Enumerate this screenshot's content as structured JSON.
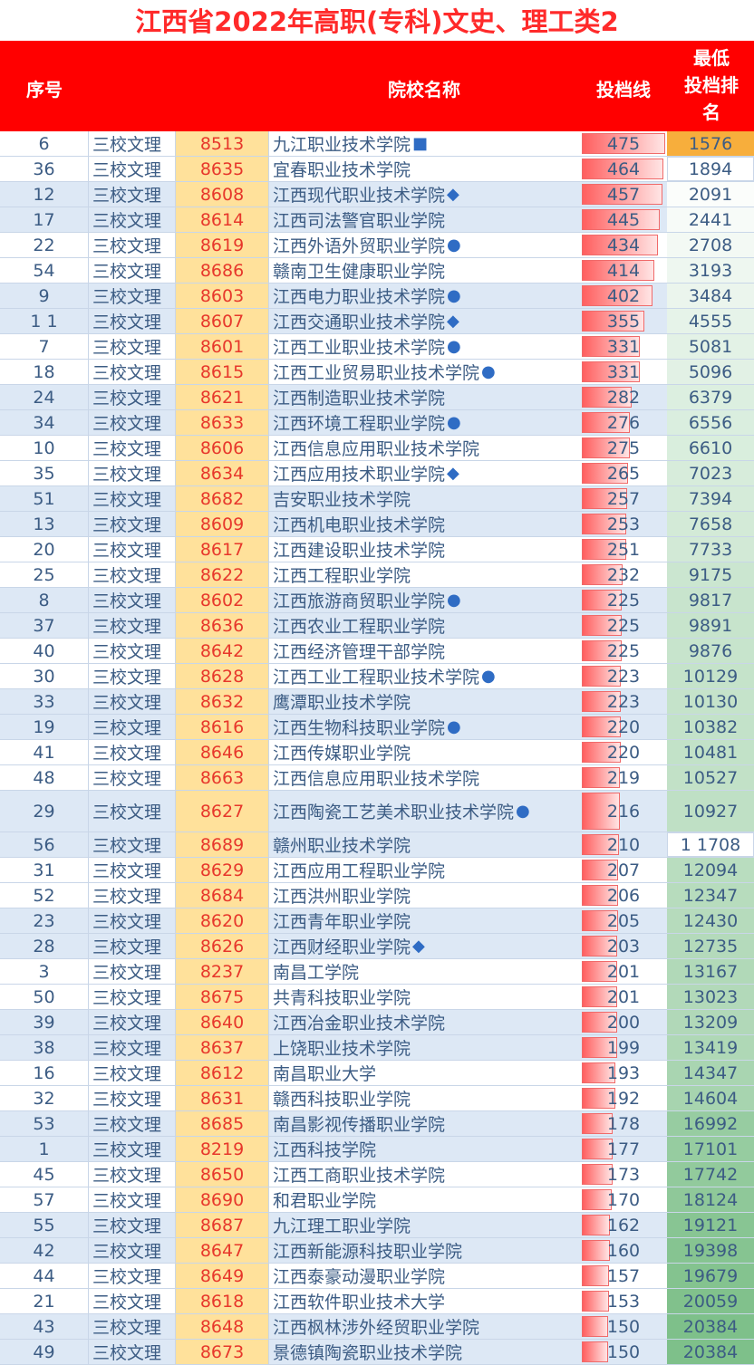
{
  "title": "江西省2022年高职(专科)文史、理工类2",
  "headers": {
    "seq": "序号",
    "name": "院校名称",
    "score": "投档线",
    "rank_lines": [
      "最低",
      "投档排",
      "名"
    ]
  },
  "score_max": 475,
  "rows": [
    {
      "seq": "6",
      "type": "三校文理",
      "code": "8513",
      "name": "九江职业技术学院",
      "mark": "■",
      "score": 475,
      "rank": "1576",
      "rank_color": "#f7ae3c"
    },
    {
      "seq": "36",
      "type": "三校文理",
      "code": "8635",
      "name": "宜春职业技术学院",
      "mark": "",
      "score": 464,
      "rank": "1894",
      "rank_color": "#ffffff"
    },
    {
      "seq": "12",
      "type": "三校文理",
      "code": "8608",
      "name": "江西现代职业技术学院",
      "mark": "◆",
      "score": 457,
      "rank": "2091",
      "rank_color": "#fbfdfb"
    },
    {
      "seq": "17",
      "type": "三校文理",
      "code": "8614",
      "name": "江西司法警官职业学院",
      "mark": "",
      "score": 445,
      "rank": "2441",
      "rank_color": "#f7fbf8"
    },
    {
      "seq": "22",
      "type": "三校文理",
      "code": "8619",
      "name": "江西外语外贸职业学院",
      "mark": "●",
      "score": 434,
      "rank": "2708",
      "rank_color": "#f3f9f4"
    },
    {
      "seq": "54",
      "type": "三校文理",
      "code": "8686",
      "name": "赣南卫生健康职业学院",
      "mark": "",
      "score": 414,
      "rank": "3193",
      "rank_color": "#eef7f0"
    },
    {
      "seq": "9",
      "type": "三校文理",
      "code": "8603",
      "name": "江西电力职业技术学院",
      "mark": "●",
      "score": 402,
      "rank": "3484",
      "rank_color": "#ebf5ed"
    },
    {
      "seq": "1 1",
      "type": "三校文理",
      "code": "8607",
      "name": "江西交通职业技术学院",
      "mark": "◆",
      "score": 355,
      "rank": "4555",
      "rank_color": "#e6f3e9"
    },
    {
      "seq": "7",
      "type": "三校文理",
      "code": "8601",
      "name": "江西工业职业技术学院",
      "mark": "●",
      "score": 331,
      "rank": "5081",
      "rank_color": "#e3f2e6"
    },
    {
      "seq": "18",
      "type": "三校文理",
      "code": "8615",
      "name": "江西工业贸易职业技术学院",
      "mark": "●",
      "score": 331,
      "rank": "5096",
      "rank_color": "#e2f1e5"
    },
    {
      "seq": "24",
      "type": "三校文理",
      "code": "8621",
      "name": "江西制造职业技术学院",
      "mark": "",
      "score": 282,
      "rank": "6379",
      "rank_color": "#dcefe0"
    },
    {
      "seq": "34",
      "type": "三校文理",
      "code": "8633",
      "name": "江西环境工程职业学院",
      "mark": "●",
      "score": 276,
      "rank": "6556",
      "rank_color": "#daeedf"
    },
    {
      "seq": "10",
      "type": "三校文理",
      "code": "8606",
      "name": "江西信息应用职业技术学院",
      "mark": "",
      "score": 275,
      "rank": "6610",
      "rank_color": "#d9eedd"
    },
    {
      "seq": "35",
      "type": "三校文理",
      "code": "8634",
      "name": "江西应用技术职业学院",
      "mark": "◆",
      "score": 265,
      "rank": "7023",
      "rank_color": "#d7ecdb"
    },
    {
      "seq": "51",
      "type": "三校文理",
      "code": "8682",
      "name": "吉安职业技术学院",
      "mark": "",
      "score": 257,
      "rank": "7394",
      "rank_color": "#d5ebd9"
    },
    {
      "seq": "13",
      "type": "三校文理",
      "code": "8609",
      "name": "江西机电职业技术学院",
      "mark": "",
      "score": 253,
      "rank": "7658",
      "rank_color": "#d3ead7"
    },
    {
      "seq": "20",
      "type": "三校文理",
      "code": "8617",
      "name": "江西建设职业技术学院",
      "mark": "",
      "score": 251,
      "rank": "7733",
      "rank_color": "#d2e9d6"
    },
    {
      "seq": "25",
      "type": "三校文理",
      "code": "8622",
      "name": "江西工程职业学院",
      "mark": "",
      "score": 232,
      "rank": "9175",
      "rank_color": "#cbe6d0"
    },
    {
      "seq": "8",
      "type": "三校文理",
      "code": "8602",
      "name": "江西旅游商贸职业学院",
      "mark": "●",
      "score": 225,
      "rank": "9817",
      "rank_color": "#c8e4cd"
    },
    {
      "seq": "37",
      "type": "三校文理",
      "code": "8636",
      "name": "江西农业工程职业学院",
      "mark": "",
      "score": 225,
      "rank": "9891",
      "rank_color": "#c7e4cc"
    },
    {
      "seq": "40",
      "type": "三校文理",
      "code": "8642",
      "name": "江西经济管理干部学院",
      "mark": "",
      "score": 225,
      "rank": "9876",
      "rank_color": "#c7e4cc"
    },
    {
      "seq": "30",
      "type": "三校文理",
      "code": "8628",
      "name": "江西工业工程职业技术学院",
      "mark": "●",
      "score": 223,
      "rank": "10129",
      "rank_color": "#c5e3ca"
    },
    {
      "seq": "33",
      "type": "三校文理",
      "code": "8632",
      "name": "鹰潭职业技术学院",
      "mark": "",
      "score": 223,
      "rank": "10130",
      "rank_color": "#c5e3ca"
    },
    {
      "seq": "19",
      "type": "三校文理",
      "code": "8616",
      "name": "江西生物科技职业学院",
      "mark": "●",
      "score": 220,
      "rank": "10382",
      "rank_color": "#c3e2c9"
    },
    {
      "seq": "41",
      "type": "三校文理",
      "code": "8646",
      "name": "江西传媒职业学院",
      "mark": "",
      "score": 220,
      "rank": "10481",
      "rank_color": "#c2e2c8"
    },
    {
      "seq": "48",
      "type": "三校文理",
      "code": "8663",
      "name": "江西信息应用职业技术学院",
      "mark": "",
      "score": 219,
      "rank": "10527",
      "rank_color": "#c2e1c7"
    },
    {
      "seq": "29",
      "type": "三校文理",
      "code": "8627",
      "name": "江西陶瓷工艺美术职业技术学院",
      "mark": "●",
      "score": 216,
      "rank": "10927",
      "rank_color": "#bfe0c5",
      "tall": true
    },
    {
      "seq": "56",
      "type": "三校文理",
      "code": "8689",
      "name": "赣州职业技术学院",
      "mark": "",
      "score": 210,
      "rank": "1 1708",
      "rank_color": "#ffffff"
    },
    {
      "seq": "31",
      "type": "三校文理",
      "code": "8629",
      "name": "江西应用工程职业学院",
      "mark": "",
      "score": 207,
      "rank": "12094",
      "rank_color": "#b9ddbf"
    },
    {
      "seq": "52",
      "type": "三校文理",
      "code": "8684",
      "name": "江西洪州职业学院",
      "mark": "",
      "score": 206,
      "rank": "12347",
      "rank_color": "#b7dcbd"
    },
    {
      "seq": "23",
      "type": "三校文理",
      "code": "8620",
      "name": "江西青年职业学院",
      "mark": "",
      "score": 205,
      "rank": "12430",
      "rank_color": "#b6dbbc"
    },
    {
      "seq": "28",
      "type": "三校文理",
      "code": "8626",
      "name": "江西财经职业学院",
      "mark": "◆",
      "score": 203,
      "rank": "12735",
      "rank_color": "#b4dabb"
    },
    {
      "seq": "3",
      "type": "三校文理",
      "code": "8237",
      "name": "南昌工学院",
      "mark": "",
      "score": 201,
      "rank": "13167",
      "rank_color": "#b1d9b8"
    },
    {
      "seq": "50",
      "type": "三校文理",
      "code": "8675",
      "name": "共青科技职业学院",
      "mark": "",
      "score": 201,
      "rank": "13023",
      "rank_color": "#b2d9b9"
    },
    {
      "seq": "39",
      "type": "三校文理",
      "code": "8640",
      "name": "江西冶金职业技术学院",
      "mark": "",
      "score": 200,
      "rank": "13209",
      "rank_color": "#b1d8b8"
    },
    {
      "seq": "38",
      "type": "三校文理",
      "code": "8637",
      "name": "上饶职业技术学院",
      "mark": "",
      "score": 199,
      "rank": "13419",
      "rank_color": "#afd8b6"
    },
    {
      "seq": "16",
      "type": "三校文理",
      "code": "8612",
      "name": "南昌职业大学",
      "mark": "",
      "score": 193,
      "rank": "14347",
      "rank_color": "#a9d5b1"
    },
    {
      "seq": "32",
      "type": "三校文理",
      "code": "8631",
      "name": "赣西科技职业学院",
      "mark": "",
      "score": 192,
      "rank": "14604",
      "rank_color": "#a7d4af"
    },
    {
      "seq": "53",
      "type": "三校文理",
      "code": "8685",
      "name": "南昌影视传播职业学院",
      "mark": "",
      "score": 178,
      "rank": "16992",
      "rank_color": "#97cca1"
    },
    {
      "seq": "1",
      "type": "三校文理",
      "code": "8219",
      "name": "江西科技学院",
      "mark": "",
      "score": 177,
      "rank": "17101",
      "rank_color": "#96cca0"
    },
    {
      "seq": "45",
      "type": "三校文理",
      "code": "8650",
      "name": "江西工商职业技术学院",
      "mark": "",
      "score": 173,
      "rank": "17742",
      "rank_color": "#92ca9c"
    },
    {
      "seq": "57",
      "type": "三校文理",
      "code": "8690",
      "name": "和君职业学院",
      "mark": "",
      "score": 170,
      "rank": "18124",
      "rank_color": "#8fc899"
    },
    {
      "seq": "55",
      "type": "三校文理",
      "code": "8687",
      "name": "九江理工职业学院",
      "mark": "",
      "score": 162,
      "rank": "19121",
      "rank_color": "#88c593"
    },
    {
      "seq": "42",
      "type": "三校文理",
      "code": "8647",
      "name": "江西新能源科技职业学院",
      "mark": "",
      "score": 160,
      "rank": "19398",
      "rank_color": "#86c491"
    },
    {
      "seq": "44",
      "type": "三校文理",
      "code": "8649",
      "name": "江西泰豪动漫职业学院",
      "mark": "",
      "score": 157,
      "rank": "19679",
      "rank_color": "#84c38f"
    },
    {
      "seq": "21",
      "type": "三校文理",
      "code": "8618",
      "name": "江西软件职业技术大学",
      "mark": "",
      "score": 153,
      "rank": "20059",
      "rank_color": "#81c18c"
    },
    {
      "seq": "43",
      "type": "三校文理",
      "code": "8648",
      "name": "江西枫林涉外经贸职业学院",
      "mark": "",
      "score": 150,
      "rank": "20384",
      "rank_color": "#7ec08a"
    },
    {
      "seq": "49",
      "type": "三校文理",
      "code": "8673",
      "name": "景德镇陶瓷职业技术学院",
      "mark": "",
      "score": 150,
      "rank": "20384",
      "rank_color": "#7ec08a"
    }
  ]
}
